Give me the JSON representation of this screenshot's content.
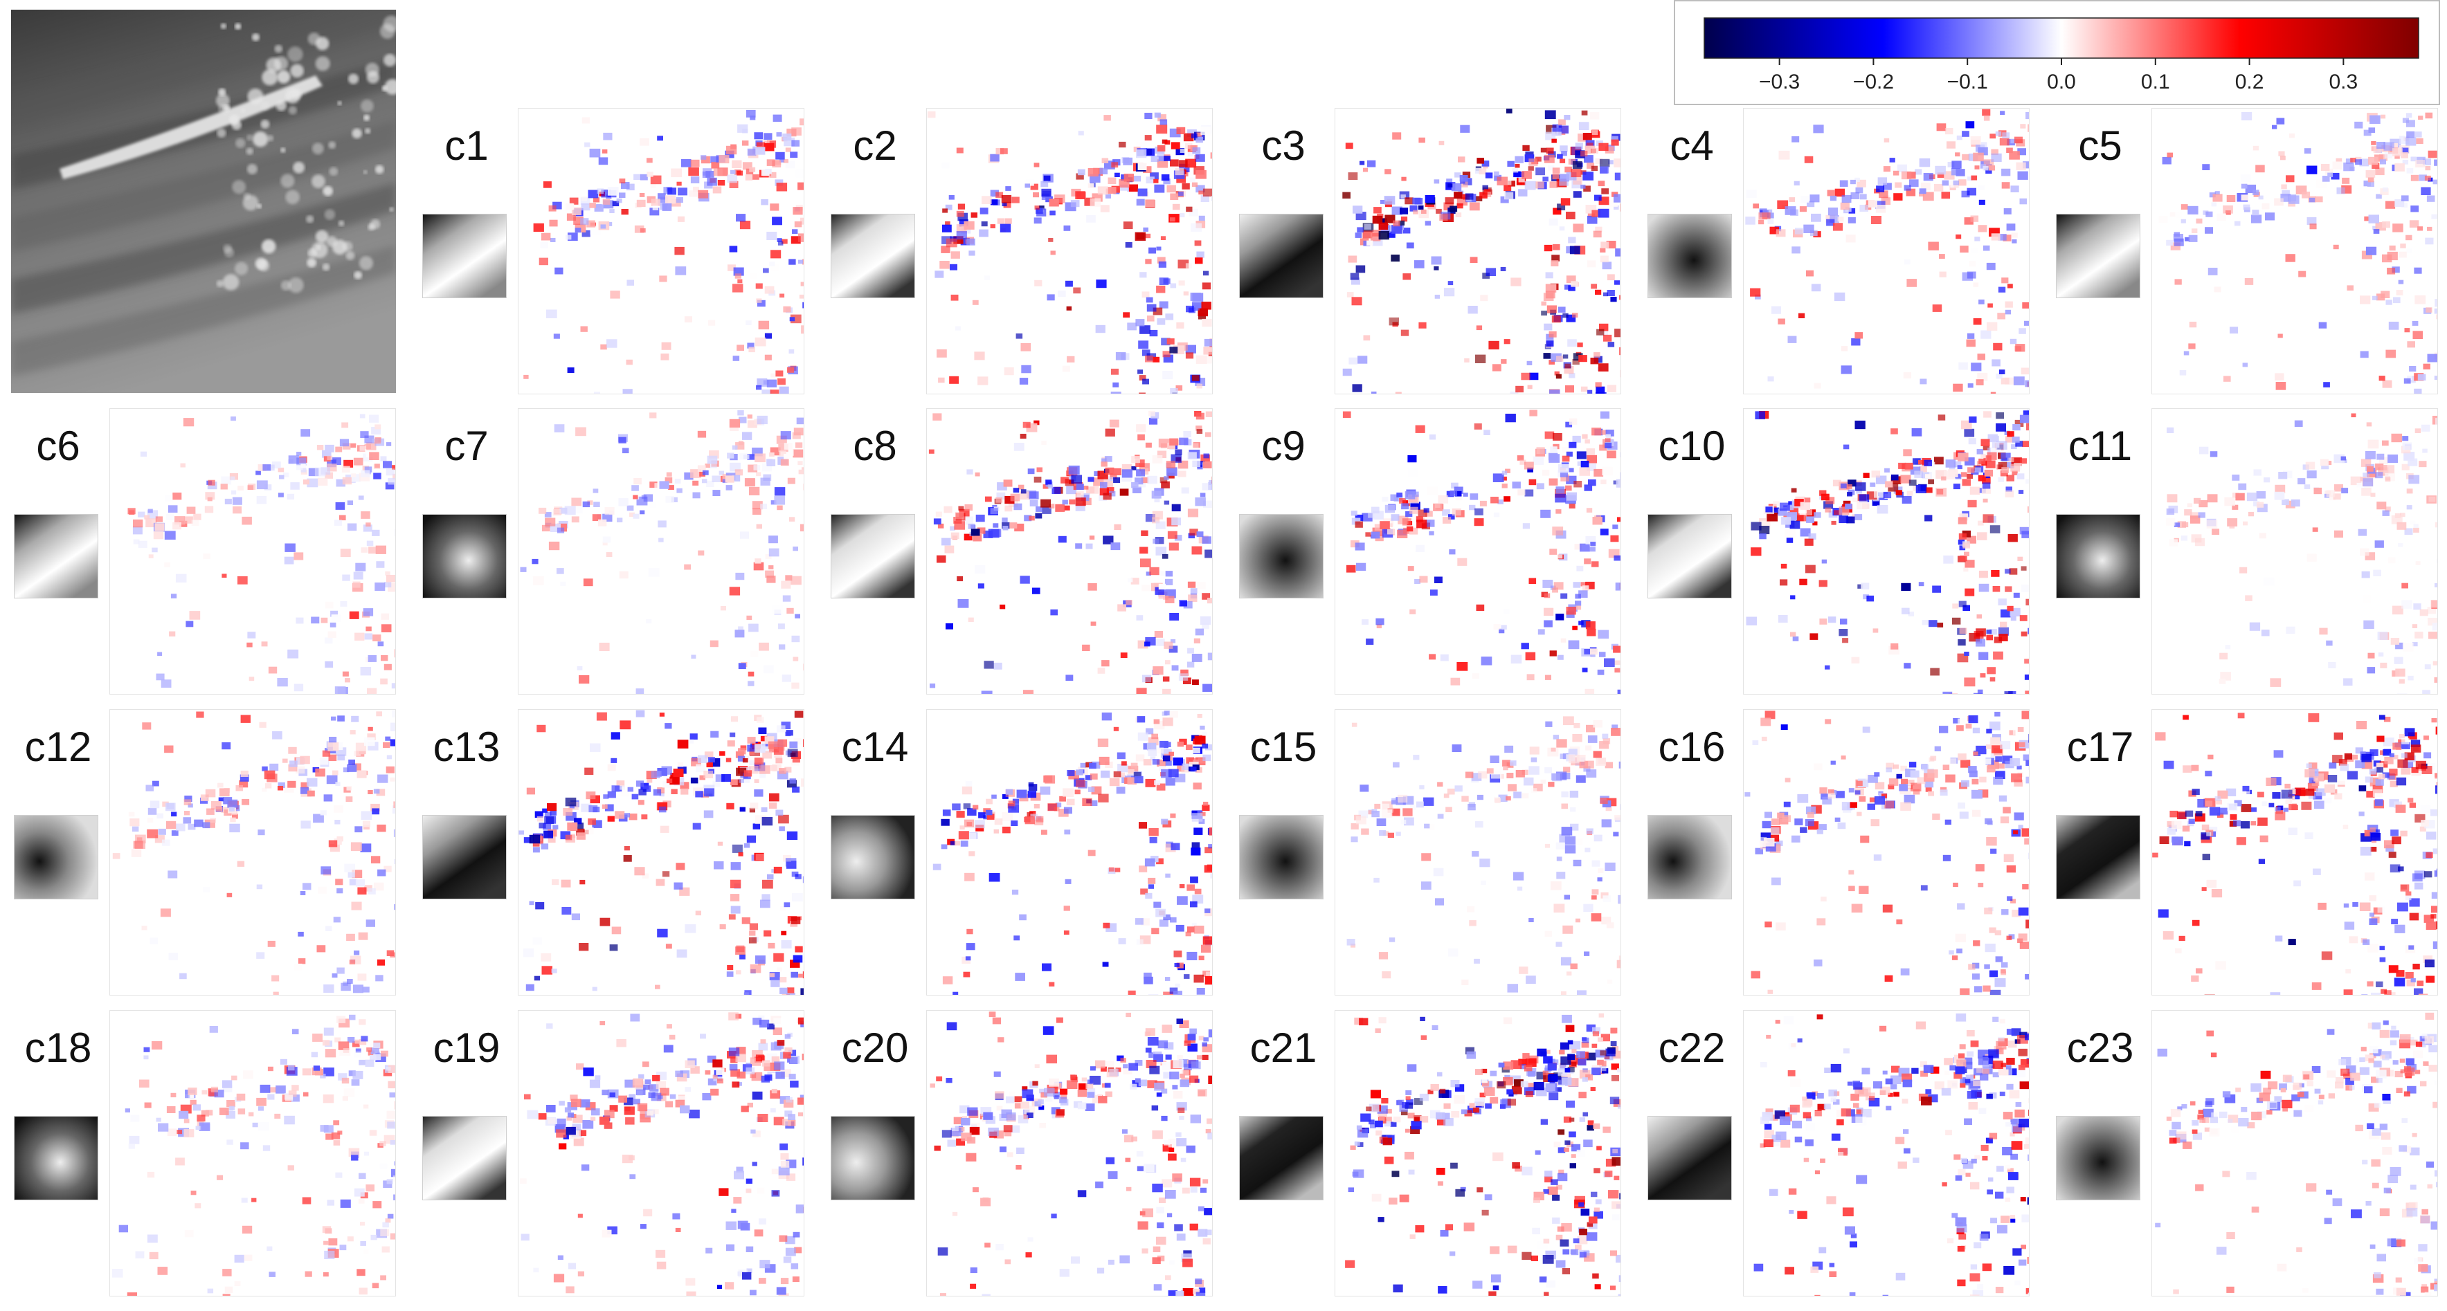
{
  "figure": {
    "colorbar": {
      "colormap": "seismic",
      "min": -0.38,
      "max": 0.38,
      "ticks": [
        -0.3,
        -0.2,
        -0.1,
        0.0,
        0.1,
        0.2,
        0.3
      ],
      "tick_labels": [
        "−0.3",
        "−0.2",
        "−0.1",
        "0.0",
        "0.1",
        "0.2",
        "0.3"
      ],
      "colors": [
        "#00004c",
        "#0000ff",
        "#ffffff",
        "#ff0000",
        "#800000"
      ]
    },
    "input_image": {
      "name": "input-image",
      "colormap": "grayscale"
    },
    "channels": [
      {
        "label": "c1",
        "intensity": 0.55,
        "kernel": "diag-dark-light"
      },
      {
        "label": "c2",
        "intensity": 0.8,
        "kernel": "band-light"
      },
      {
        "label": "c3",
        "intensity": 1.0,
        "kernel": "diag-light-dark"
      },
      {
        "label": "c4",
        "intensity": 0.5,
        "kernel": "blob-dark"
      },
      {
        "label": "c5",
        "intensity": 0.45,
        "kernel": "diag-dark-light"
      },
      {
        "label": "c6",
        "intensity": 0.4,
        "kernel": "diag-dark-light"
      },
      {
        "label": "c7",
        "intensity": 0.35,
        "kernel": "blob-light"
      },
      {
        "label": "c8",
        "intensity": 0.8,
        "kernel": "band-light"
      },
      {
        "label": "c9",
        "intensity": 0.65,
        "kernel": "blob-dark"
      },
      {
        "label": "c10",
        "intensity": 0.9,
        "kernel": "band-light"
      },
      {
        "label": "c11",
        "intensity": 0.3,
        "kernel": "blob-light"
      },
      {
        "label": "c12",
        "intensity": 0.45,
        "kernel": "arc-dark"
      },
      {
        "label": "c13",
        "intensity": 0.85,
        "kernel": "diag-light-dark"
      },
      {
        "label": "c14",
        "intensity": 0.7,
        "kernel": "arc-light"
      },
      {
        "label": "c15",
        "intensity": 0.35,
        "kernel": "blob-dark"
      },
      {
        "label": "c16",
        "intensity": 0.55,
        "kernel": "arc-dark"
      },
      {
        "label": "c17",
        "intensity": 0.8,
        "kernel": "band-dark"
      },
      {
        "label": "c18",
        "intensity": 0.4,
        "kernel": "blob-light"
      },
      {
        "label": "c19",
        "intensity": 0.6,
        "kernel": "band-light"
      },
      {
        "label": "c20",
        "intensity": 0.65,
        "kernel": "arc-light"
      },
      {
        "label": "c21",
        "intensity": 0.95,
        "kernel": "band-dark"
      },
      {
        "label": "c22",
        "intensity": 0.7,
        "kernel": "diag-light-dark"
      },
      {
        "label": "c23",
        "intensity": 0.45,
        "kernel": "blob-dark"
      }
    ]
  }
}
